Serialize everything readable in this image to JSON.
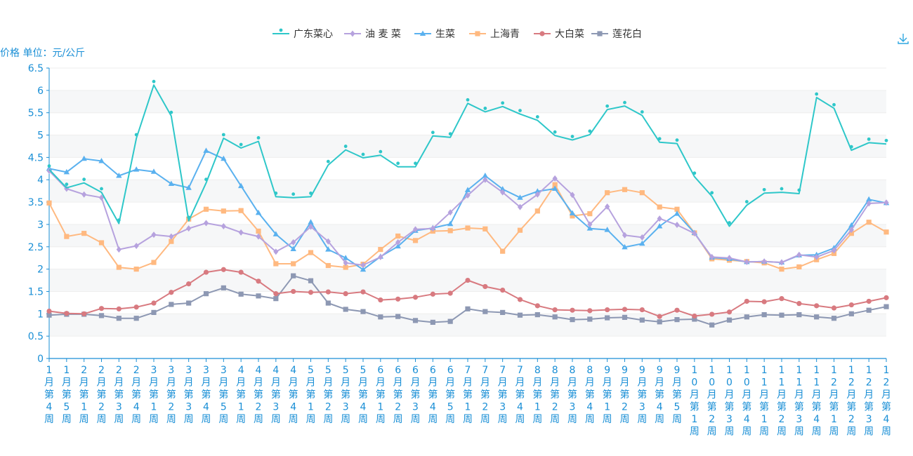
{
  "toolbar": {
    "download_icon": "download-icon"
  },
  "chart_data": {
    "type": "line",
    "ylabel": "价格 单位：元/公斤",
    "ylim": [
      0,
      6.5
    ],
    "yticks": [
      "0",
      "0.5",
      "1",
      "1.5",
      "2",
      "2.5",
      "3",
      "3.5",
      "4",
      "4.5",
      "5",
      "5.5",
      "6",
      "6.5"
    ],
    "grid": true,
    "legend_position": "top-center",
    "categories": [
      "1月第4周",
      "1月第5周",
      "2月第1周",
      "2月第2周",
      "2月第3周",
      "2月第4周",
      "3月第1周",
      "3月第2周",
      "3月第3周",
      "3月第4周",
      "3月第5周",
      "4月第1周",
      "4月第2周",
      "4月第3周",
      "4月第4周",
      "5月第1周",
      "5月第2周",
      "5月第3周",
      "5月第4周",
      "6月第1周",
      "6月第2周",
      "6月第3周",
      "6月第4周",
      "6月第5周",
      "7月第1周",
      "7月第2周",
      "7月第3周",
      "7月第4周",
      "8月第1周",
      "8月第2周",
      "8月第3周",
      "8月第4周",
      "9月第1周",
      "9月第2周",
      "9月第3周",
      "9月第4周",
      "9月第5周",
      "10月第1周",
      "10月第2周",
      "10月第3周",
      "10月第4周",
      "11月第1周",
      "11月第2周",
      "11月第3周",
      "11月第4周",
      "12月第1周",
      "12月第2周",
      "12月第3周",
      "12月第4周"
    ],
    "series": [
      {
        "name": "广东菜心",
        "color": "#2ec7c9",
        "marker": "pin",
        "values": [
          4.23,
          3.82,
          3.93,
          3.72,
          3.02,
          4.93,
          6.12,
          5.43,
          3.08,
          3.93,
          4.93,
          4.71,
          4.86,
          3.62,
          3.6,
          3.62,
          4.33,
          4.67,
          4.49,
          4.55,
          4.29,
          4.29,
          4.98,
          4.95,
          5.71,
          5.52,
          5.64,
          5.47,
          5.33,
          4.99,
          4.89,
          5.01,
          5.57,
          5.65,
          5.44,
          4.84,
          4.81,
          4.07,
          3.63,
          2.96,
          3.43,
          3.7,
          3.72,
          3.69,
          5.84,
          5.6,
          4.66,
          4.83,
          4.8
        ]
      },
      {
        "name": "油 麦 菜",
        "color": "#b6a2de",
        "marker": "diamond",
        "values": [
          4.2,
          3.8,
          3.67,
          3.6,
          2.44,
          2.52,
          2.77,
          2.73,
          2.91,
          3.03,
          2.96,
          2.82,
          2.73,
          2.39,
          2.6,
          2.95,
          2.62,
          2.14,
          2.09,
          2.27,
          2.6,
          2.89,
          2.91,
          3.27,
          3.65,
          4.0,
          3.72,
          3.39,
          3.67,
          4.03,
          3.66,
          3.0,
          3.4,
          2.76,
          2.71,
          3.13,
          2.99,
          2.8,
          2.27,
          2.25,
          2.16,
          2.17,
          2.15,
          2.32,
          2.27,
          2.42,
          2.88,
          3.47,
          3.49
        ]
      },
      {
        "name": "生菜",
        "color": "#5ab1ef",
        "marker": "triangle",
        "values": [
          4.25,
          4.17,
          4.47,
          4.42,
          4.09,
          4.23,
          4.18,
          3.91,
          3.82,
          4.65,
          4.47,
          3.86,
          3.26,
          2.78,
          2.45,
          3.05,
          2.44,
          2.25,
          1.99,
          2.28,
          2.51,
          2.86,
          2.92,
          3.01,
          3.77,
          4.09,
          3.79,
          3.6,
          3.74,
          3.8,
          3.25,
          2.91,
          2.88,
          2.49,
          2.57,
          2.96,
          3.24,
          2.81,
          2.26,
          2.23,
          2.16,
          2.17,
          2.15,
          2.31,
          2.32,
          2.47,
          2.98,
          3.56,
          3.48
        ]
      },
      {
        "name": "上海青",
        "color": "#ffb980",
        "marker": "square",
        "values": [
          3.48,
          2.73,
          2.8,
          2.59,
          2.04,
          2.0,
          2.15,
          2.62,
          3.12,
          3.34,
          3.3,
          3.31,
          2.85,
          2.12,
          2.12,
          2.37,
          2.08,
          2.04,
          2.11,
          2.44,
          2.74,
          2.64,
          2.85,
          2.86,
          2.92,
          2.9,
          2.4,
          2.87,
          3.3,
          3.89,
          3.19,
          3.24,
          3.71,
          3.78,
          3.71,
          3.39,
          3.34,
          2.81,
          2.23,
          2.2,
          2.17,
          2.14,
          2.0,
          2.05,
          2.21,
          2.35,
          2.8,
          3.05,
          2.83
        ]
      },
      {
        "name": "大白菜",
        "color": "#d87a80",
        "marker": "circle",
        "values": [
          1.06,
          1.01,
          1.0,
          1.12,
          1.11,
          1.15,
          1.24,
          1.48,
          1.67,
          1.93,
          1.99,
          1.93,
          1.73,
          1.45,
          1.5,
          1.48,
          1.49,
          1.45,
          1.49,
          1.31,
          1.33,
          1.37,
          1.44,
          1.46,
          1.75,
          1.61,
          1.53,
          1.32,
          1.18,
          1.09,
          1.08,
          1.07,
          1.09,
          1.1,
          1.09,
          0.94,
          1.08,
          0.95,
          0.99,
          1.04,
          1.28,
          1.27,
          1.34,
          1.23,
          1.18,
          1.13,
          1.2,
          1.28,
          1.36
        ]
      },
      {
        "name": "莲花白",
        "color": "#8d98b3",
        "marker": "square",
        "values": [
          0.97,
          0.99,
          0.99,
          0.96,
          0.9,
          0.9,
          1.03,
          1.21,
          1.24,
          1.45,
          1.58,
          1.44,
          1.4,
          1.34,
          1.85,
          1.74,
          1.24,
          1.1,
          1.05,
          0.93,
          0.94,
          0.85,
          0.81,
          0.83,
          1.11,
          1.05,
          1.03,
          0.97,
          0.98,
          0.93,
          0.87,
          0.88,
          0.91,
          0.92,
          0.86,
          0.82,
          0.87,
          0.88,
          0.75,
          0.86,
          0.93,
          0.98,
          0.97,
          0.98,
          0.93,
          0.9,
          1.0,
          1.08,
          1.16
        ]
      }
    ]
  }
}
